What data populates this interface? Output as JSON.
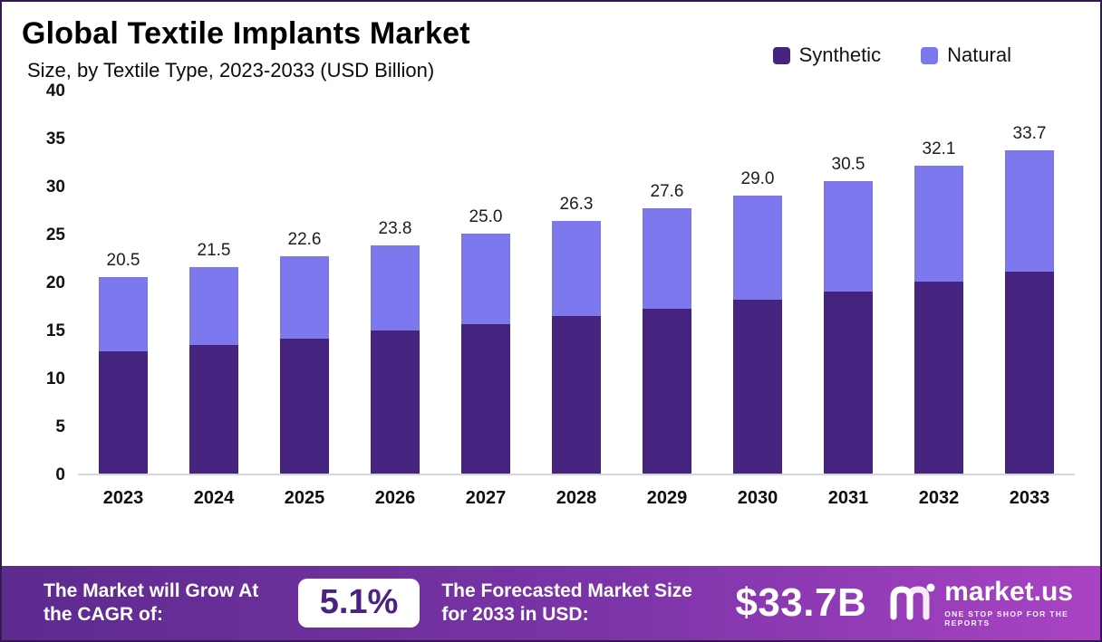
{
  "header": {
    "title": "Global Textile Implants Market",
    "subtitle": "Size, by Textile Type, 2023-2033 (USD Billion)"
  },
  "legend": [
    {
      "label": "Synthetic",
      "color": "#46237e"
    },
    {
      "label": "Natural",
      "color": "#7e78ee"
    }
  ],
  "chart_data": {
    "type": "bar",
    "stacked": true,
    "title": "Global Textile Implants Market Size, by Textile Type, 2023-2033 (USD Billion)",
    "categories": [
      "2023",
      "2024",
      "2025",
      "2026",
      "2027",
      "2028",
      "2029",
      "2030",
      "2031",
      "2032",
      "2033"
    ],
    "series": [
      {
        "name": "Synthetic",
        "color": "#46237e",
        "values": [
          12.7,
          13.4,
          14.1,
          14.9,
          15.6,
          16.4,
          17.2,
          18.1,
          19.0,
          20.0,
          21.0
        ]
      },
      {
        "name": "Natural",
        "color": "#7e78ee",
        "values": [
          7.8,
          8.1,
          8.5,
          8.9,
          9.4,
          9.9,
          10.4,
          10.9,
          11.5,
          12.1,
          12.7
        ]
      }
    ],
    "totals": [
      20.5,
      21.5,
      22.6,
      23.8,
      25.0,
      26.3,
      27.6,
      29.0,
      30.5,
      32.1,
      33.7
    ],
    "total_labels": [
      "20.5",
      "21.5",
      "22.6",
      "23.8",
      "25.0",
      "26.3",
      "27.6",
      "29.0",
      "30.5",
      "32.1",
      "33.7"
    ],
    "xlabel": "",
    "ylabel": "",
    "ylim": [
      0,
      40
    ],
    "yticks": [
      0,
      5,
      10,
      15,
      20,
      25,
      30,
      35,
      40
    ],
    "grid": false,
    "legend_position": "top-right"
  },
  "footer": {
    "cagr_label": "The Market will Grow At the CAGR of:",
    "cagr_value": "5.1%",
    "forecast_label": "The Forecasted Market Size for 2033 in USD:",
    "forecast_value": "$33.7B",
    "brand": "market.us",
    "brand_tagline": "ONE STOP SHOP FOR THE REPORTS"
  }
}
